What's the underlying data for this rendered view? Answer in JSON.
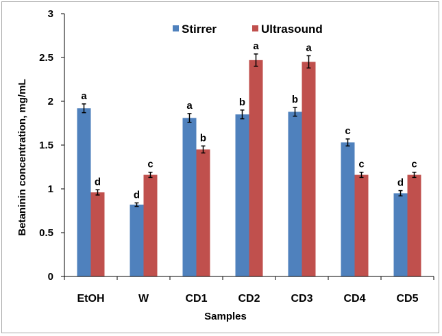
{
  "chart_data": {
    "type": "bar",
    "title": "",
    "xlabel": "Samples",
    "ylabel": "Betaninin concentration, mg/mL",
    "ylim": [
      0,
      3
    ],
    "yticks": [
      "0",
      "0.5",
      "1",
      "1.5",
      "2",
      "2.5",
      "3"
    ],
    "grid": false,
    "legend_position": "top-right",
    "categories": [
      "EtOH",
      "W",
      "CD1",
      "CD2",
      "CD3",
      "CD4",
      "CD5"
    ],
    "series": [
      {
        "name": "Stirrer",
        "color": "#4f81bd",
        "values": [
          1.92,
          0.82,
          1.81,
          1.85,
          1.88,
          1.53,
          0.95
        ],
        "errors": [
          0.05,
          0.02,
          0.05,
          0.05,
          0.05,
          0.04,
          0.03
        ],
        "labels": [
          "a",
          "d",
          "a",
          "b",
          "b",
          "c",
          "d"
        ]
      },
      {
        "name": "Ultrasound",
        "color": "#c0504d",
        "values": [
          0.96,
          1.16,
          1.45,
          2.47,
          2.45,
          1.16,
          1.16
        ],
        "errors": [
          0.03,
          0.03,
          0.04,
          0.07,
          0.07,
          0.03,
          0.03
        ],
        "labels": [
          "d",
          "c",
          "b",
          "a",
          "a",
          "c",
          "c"
        ]
      }
    ]
  }
}
